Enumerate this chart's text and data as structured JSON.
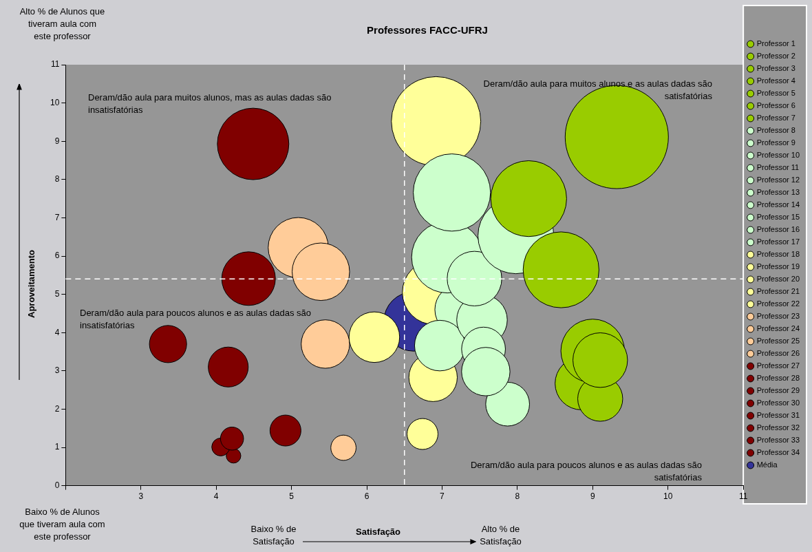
{
  "chart_data": {
    "type": "bubble",
    "title": "Professores FACC-UFRJ",
    "xlabel": "Satisfação",
    "ylabel": "Aproveitamento",
    "xlim": [
      2,
      11
    ],
    "xticks": [
      {
        "value": 2,
        "label": null
      },
      3,
      4,
      5,
      6,
      7,
      8,
      9,
      10,
      11
    ],
    "ylim": [
      0,
      11
    ],
    "yticks": [
      0,
      1,
      2,
      3,
      4,
      5,
      6,
      7,
      8,
      9,
      10,
      11
    ],
    "grid": false,
    "legend": "right",
    "marker": "circle",
    "ref_lines": [
      {
        "axis": "x",
        "value": 6.5,
        "color": "#ffffff",
        "line_style": "dashed"
      },
      {
        "axis": "y",
        "value": 5.4,
        "color": "#ffffff",
        "line_style": "dashed"
      }
    ],
    "annotations": [
      "Alto % de Alunos que tiveram aula com este professor",
      "Baixo % de Alunos que tiveram aula com este professor",
      "Baixo % de Satisfação",
      "Alto % de Satisfação",
      "Deram/dão aula para muitos alunos, mas as aulas dadas são insatisfatórias",
      "Deram/dão aula para muitos alunos e as aulas dadas são satisfatórias",
      "Deram/dão aula para poucos alunos e as aulas dadas são insatisfatórias",
      "Deram/dão aula para poucos alunos e as aulas dadas são satisfatórias"
    ],
    "series": [
      {
        "name": "Professor 1",
        "color": "#99cc00",
        "x": [
          9.32
        ],
        "values": [
          9.11
        ],
        "sizes": [
          1
        ]
      },
      {
        "name": "Professor 2",
        "color": "#99cc00",
        "x": [
          8.15
        ],
        "values": [
          7.5
        ],
        "sizes": [
          0.54
        ]
      },
      {
        "name": "Professor 3",
        "color": "#99cc00",
        "x": [
          8.58
        ],
        "values": [
          5.64
        ],
        "sizes": [
          0.54
        ]
      },
      {
        "name": "Professor 4",
        "color": "#99cc00",
        "x": [
          9.1
        ],
        "values": [
          3.28
        ],
        "sizes": [
          0.28
        ]
      },
      {
        "name": "Professor 5",
        "color": "#99cc00",
        "x": [
          9.0
        ],
        "values": [
          3.52
        ],
        "sizes": [
          0.38
        ]
      },
      {
        "name": "Professor 6",
        "color": "#99cc00",
        "x": [
          9.1
        ],
        "values": [
          2.27
        ],
        "sizes": [
          0.19
        ]
      },
      {
        "name": "Professor 7",
        "color": "#99cc00",
        "x": [
          8.85
        ],
        "values": [
          2.67
        ],
        "sizes": [
          0.26
        ]
      },
      {
        "name": "Professor 8",
        "color": "#ccffcc",
        "x": [
          7.13
        ],
        "values": [
          7.66
        ],
        "sizes": [
          0.56
        ]
      },
      {
        "name": "Professor 9",
        "color": "#ccffcc",
        "x": [
          7.98
        ],
        "values": [
          6.53
        ],
        "sizes": [
          0.54
        ]
      },
      {
        "name": "Professor 10",
        "color": "#ccffcc",
        "x": [
          7.43
        ],
        "values": [
          5.41
        ],
        "sizes": [
          0.28
        ]
      },
      {
        "name": "Professor 11",
        "color": "#ccffcc",
        "x": [
          7.07
        ],
        "values": [
          5.97
        ],
        "sizes": [
          0.48
        ]
      },
      {
        "name": "Professor 12",
        "color": "#ccffcc",
        "x": [
          7.58
        ],
        "values": [
          2.98
        ],
        "sizes": [
          0.22
        ]
      },
      {
        "name": "Professor 13",
        "color": "#ccffcc",
        "x": [
          7.55
        ],
        "values": [
          3.57
        ],
        "sizes": [
          0.18
        ]
      },
      {
        "name": "Professor 14",
        "color": "#ccffcc",
        "x": [
          7.53
        ],
        "values": [
          4.33
        ],
        "sizes": [
          0.24
        ]
      },
      {
        "name": "Professor 15",
        "color": "#ccffcc",
        "x": [
          6.97
        ],
        "values": [
          3.66
        ],
        "sizes": [
          0.24
        ]
      },
      {
        "name": "Professor 16",
        "color": "#ccffcc",
        "x": [
          7.24
        ],
        "values": [
          4.6
        ],
        "sizes": [
          0.24
        ]
      },
      {
        "name": "Professor 17",
        "color": "#ccffcc",
        "x": [
          7.87
        ],
        "values": [
          2.13
        ],
        "sizes": [
          0.18
        ]
      },
      {
        "name": "Professor 18",
        "color": "#ffff99",
        "x": [
          6.92
        ],
        "values": [
          9.52
        ],
        "sizes": [
          0.75
        ]
      },
      {
        "name": "Professor 19",
        "color": "#ffff99",
        "x": [
          6.9
        ],
        "values": [
          5.05
        ],
        "sizes": [
          0.39
        ]
      },
      {
        "name": "Professor 20",
        "color": "#ffff99",
        "x": [
          6.1
        ],
        "values": [
          3.88
        ],
        "sizes": [
          0.24
        ]
      },
      {
        "name": "Professor 21",
        "color": "#ffff99",
        "x": [
          6.88
        ],
        "values": [
          2.83
        ],
        "sizes": [
          0.22
        ]
      },
      {
        "name": "Professor 22",
        "color": "#ffff99",
        "x": [
          6.74
        ],
        "values": [
          1.35
        ],
        "sizes": [
          0.09
        ]
      },
      {
        "name": "Professor 23",
        "color": "#ffcc99",
        "x": [
          5.39
        ],
        "values": [
          5.59
        ],
        "sizes": [
          0.31
        ]
      },
      {
        "name": "Professor 24",
        "color": "#ffcc99",
        "x": [
          5.09
        ],
        "values": [
          6.22
        ],
        "sizes": [
          0.34
        ]
      },
      {
        "name": "Professor 25",
        "color": "#ffcc99",
        "x": [
          5.45
        ],
        "values": [
          3.7
        ],
        "sizes": [
          0.22
        ]
      },
      {
        "name": "Professor 26",
        "color": "#ffcc99",
        "x": [
          5.69
        ],
        "values": [
          0.99
        ],
        "sizes": [
          0.06
        ]
      },
      {
        "name": "Professor 27",
        "color": "#800000",
        "x": [
          4.49
        ],
        "values": [
          8.93
        ],
        "sizes": [
          0.48
        ]
      },
      {
        "name": "Professor 28",
        "color": "#800000",
        "x": [
          4.43
        ],
        "values": [
          5.41
        ],
        "sizes": [
          0.27
        ]
      },
      {
        "name": "Professor 29",
        "color": "#800000",
        "x": [
          3.36
        ],
        "values": [
          3.7
        ],
        "sizes": [
          0.13
        ]
      },
      {
        "name": "Professor 30",
        "color": "#800000",
        "x": [
          4.16
        ],
        "values": [
          3.1
        ],
        "sizes": [
          0.15
        ]
      },
      {
        "name": "Professor 31",
        "color": "#800000",
        "x": [
          4.92
        ],
        "values": [
          1.44
        ],
        "sizes": [
          0.09
        ]
      },
      {
        "name": "Professor 32",
        "color": "#800000",
        "x": [
          4.21
        ],
        "values": [
          1.23
        ],
        "sizes": [
          0.05
        ]
      },
      {
        "name": "Professor 33",
        "color": "#800000",
        "x": [
          4.06
        ],
        "values": [
          1.01
        ],
        "sizes": [
          0.03
        ]
      },
      {
        "name": "Professor 34",
        "color": "#800000",
        "x": [
          4.23
        ],
        "values": [
          0.78
        ],
        "sizes": [
          0.02
        ]
      },
      {
        "name": "Média",
        "color": "#333399",
        "x": [
          6.62
        ],
        "values": [
          4.29
        ],
        "sizes": [
          0.33
        ]
      }
    ]
  }
}
